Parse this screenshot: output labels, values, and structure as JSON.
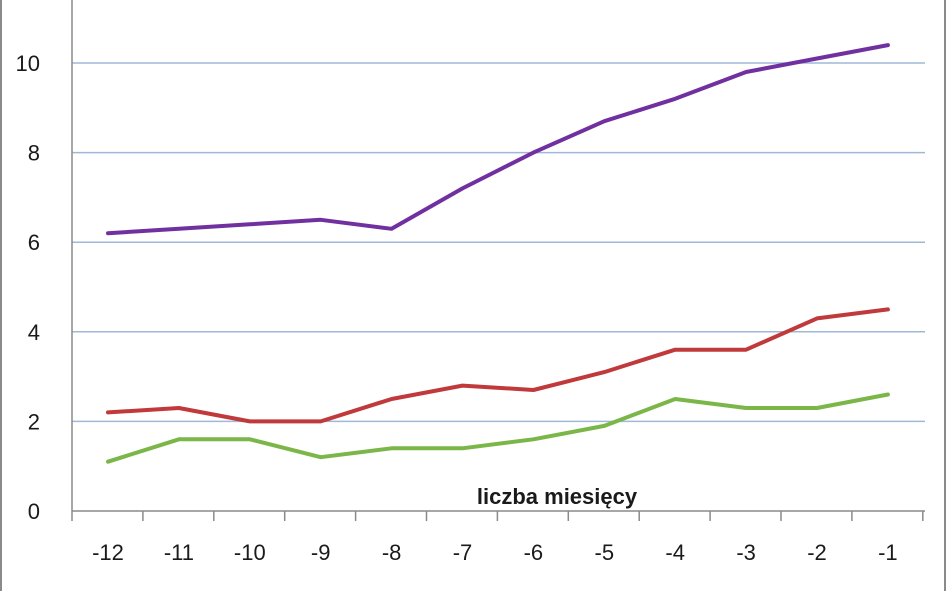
{
  "chart_data": {
    "type": "line",
    "title": "",
    "xlabel": "liczba miesięcy",
    "ylabel": "",
    "categories": [
      "-12",
      "-11",
      "-10",
      "-9",
      "-8",
      "-7",
      "-6",
      "-5",
      "-4",
      "-3",
      "-2",
      "-1"
    ],
    "y_ticks": [
      "0",
      "2",
      "4",
      "6",
      "8",
      "10"
    ],
    "ylim": [
      0,
      10.8
    ],
    "grid": true,
    "series": [
      {
        "color": "#7030a0",
        "values": [
          6.2,
          6.3,
          6.4,
          6.5,
          6.3,
          7.2,
          8.0,
          8.7,
          9.2,
          9.8,
          10.1,
          10.4
        ]
      },
      {
        "color": "#c0393b",
        "values": [
          2.2,
          2.3,
          2.0,
          2.0,
          2.5,
          2.8,
          2.7,
          3.1,
          3.6,
          3.6,
          4.3,
          4.5
        ]
      },
      {
        "color": "#7ab648",
        "values": [
          1.1,
          1.6,
          1.6,
          1.2,
          1.4,
          1.4,
          1.6,
          1.9,
          2.5,
          2.3,
          2.3,
          2.6
        ]
      }
    ],
    "colors": {
      "grid": "#9fb8d8",
      "axis": "#8a8a8a"
    }
  }
}
